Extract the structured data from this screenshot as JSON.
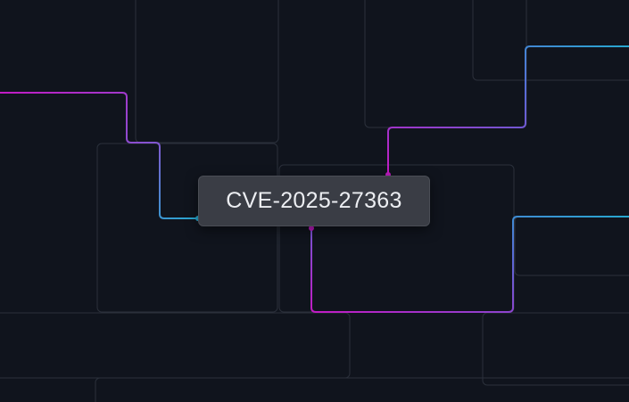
{
  "node": {
    "label": "CVE-2025-27363"
  },
  "colors": {
    "background": "#10141d",
    "grid_line": "#2b303b",
    "magenta": "#c21bc4",
    "blue": "#3f7ad8",
    "cyan": "#27a8d0"
  }
}
